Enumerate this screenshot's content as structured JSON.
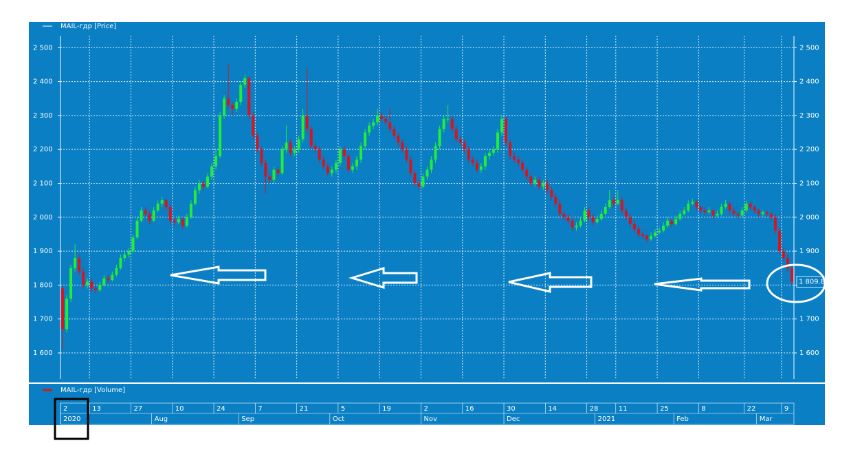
{
  "chart_data": {
    "type": "candlestick",
    "series": [
      {
        "name": "MAIL-гдр [Price]",
        "ohlc": [
          [
            1790,
            1800,
            1610,
            1670
          ],
          [
            1670,
            1770,
            1660,
            1760
          ],
          [
            1760,
            1860,
            1750,
            1850
          ],
          [
            1850,
            1920,
            1840,
            1880
          ],
          [
            1880,
            1890,
            1830,
            1840
          ],
          [
            1840,
            1850,
            1790,
            1800
          ],
          [
            1800,
            1820,
            1790,
            1810
          ],
          [
            1810,
            1820,
            1780,
            1790
          ],
          [
            1790,
            1800,
            1775,
            1785
          ],
          [
            1785,
            1810,
            1780,
            1800
          ],
          [
            1800,
            1830,
            1795,
            1820
          ],
          [
            1820,
            1830,
            1805,
            1815
          ],
          [
            1815,
            1840,
            1810,
            1830
          ],
          [
            1830,
            1860,
            1825,
            1850
          ],
          [
            1850,
            1890,
            1845,
            1880
          ],
          [
            1880,
            1900,
            1870,
            1890
          ],
          [
            1890,
            1910,
            1880,
            1900
          ],
          [
            1900,
            1950,
            1895,
            1940
          ],
          [
            1940,
            2000,
            1935,
            1990
          ],
          [
            1990,
            2030,
            1985,
            2020
          ],
          [
            2020,
            2030,
            2000,
            2010
          ],
          [
            2010,
            2020,
            1980,
            1990
          ],
          [
            1990,
            2030,
            1985,
            2020
          ],
          [
            2020,
            2050,
            2015,
            2040
          ],
          [
            2040,
            2060,
            2030,
            2050
          ],
          [
            2050,
            2055,
            2020,
            2030
          ],
          [
            2030,
            2040,
            1980,
            1990
          ],
          [
            1990,
            2000,
            1975,
            1985
          ],
          [
            1985,
            2005,
            1980,
            1995
          ],
          [
            1995,
            2000,
            1965,
            1975
          ],
          [
            1975,
            2010,
            1970,
            2000
          ],
          [
            2000,
            2050,
            1995,
            2040
          ],
          [
            2040,
            2090,
            2035,
            2080
          ],
          [
            2080,
            2110,
            2070,
            2100
          ],
          [
            2100,
            2110,
            2080,
            2090
          ],
          [
            2090,
            2130,
            2085,
            2120
          ],
          [
            2120,
            2160,
            2110,
            2150
          ],
          [
            2150,
            2200,
            2140,
            2180
          ],
          [
            2180,
            2310,
            2175,
            2300
          ],
          [
            2300,
            2360,
            2290,
            2350
          ],
          [
            2350,
            2450,
            2320,
            2330
          ],
          [
            2330,
            2340,
            2300,
            2320
          ],
          [
            2320,
            2350,
            2310,
            2340
          ],
          [
            2340,
            2400,
            2330,
            2390
          ],
          [
            2390,
            2420,
            2380,
            2410
          ],
          [
            2410,
            2415,
            2290,
            2300
          ],
          [
            2300,
            2310,
            2230,
            2240
          ],
          [
            2240,
            2250,
            2190,
            2200
          ],
          [
            2200,
            2210,
            2150,
            2160
          ],
          [
            2160,
            2170,
            2070,
            2120
          ],
          [
            2120,
            2130,
            2100,
            2110
          ],
          [
            2110,
            2150,
            2100,
            2140
          ],
          [
            2140,
            2150,
            2120,
            2130
          ],
          [
            2130,
            2210,
            2125,
            2200
          ],
          [
            2200,
            2270,
            2190,
            2220
          ],
          [
            2220,
            2230,
            2180,
            2190
          ],
          [
            2190,
            2210,
            2180,
            2200
          ],
          [
            2200,
            2240,
            2190,
            2230
          ],
          [
            2230,
            2320,
            2220,
            2300
          ],
          [
            2300,
            2440,
            2250,
            2260
          ],
          [
            2260,
            2270,
            2200,
            2210
          ],
          [
            2210,
            2220,
            2190,
            2200
          ],
          [
            2200,
            2210,
            2160,
            2170
          ],
          [
            2170,
            2180,
            2140,
            2150
          ],
          [
            2150,
            2160,
            2120,
            2130
          ],
          [
            2130,
            2150,
            2120,
            2140
          ],
          [
            2140,
            2170,
            2130,
            2160
          ],
          [
            2160,
            2210,
            2150,
            2200
          ],
          [
            2200,
            2210,
            2170,
            2180
          ],
          [
            2180,
            2190,
            2130,
            2140
          ],
          [
            2140,
            2160,
            2130,
            2150
          ],
          [
            2150,
            2180,
            2140,
            2170
          ],
          [
            2170,
            2220,
            2160,
            2210
          ],
          [
            2210,
            2260,
            2200,
            2250
          ],
          [
            2250,
            2280,
            2240,
            2270
          ],
          [
            2270,
            2290,
            2260,
            2280
          ],
          [
            2280,
            2320,
            2270,
            2300
          ],
          [
            2300,
            2310,
            2280,
            2290
          ],
          [
            2290,
            2300,
            2270,
            2280
          ],
          [
            2280,
            2320,
            2250,
            2260
          ],
          [
            2260,
            2270,
            2230,
            2240
          ],
          [
            2240,
            2250,
            2210,
            2220
          ],
          [
            2220,
            2230,
            2190,
            2200
          ],
          [
            2200,
            2210,
            2160,
            2170
          ],
          [
            2170,
            2180,
            2120,
            2130
          ],
          [
            2130,
            2140,
            2090,
            2100
          ],
          [
            2100,
            2110,
            2080,
            2090
          ],
          [
            2090,
            2130,
            2085,
            2120
          ],
          [
            2120,
            2150,
            2110,
            2140
          ],
          [
            2140,
            2180,
            2130,
            2170
          ],
          [
            2170,
            2220,
            2160,
            2210
          ],
          [
            2210,
            2270,
            2200,
            2260
          ],
          [
            2260,
            2300,
            2250,
            2290
          ],
          [
            2290,
            2330,
            2280,
            2290
          ],
          [
            2290,
            2300,
            2250,
            2260
          ],
          [
            2260,
            2270,
            2220,
            2230
          ],
          [
            2230,
            2240,
            2210,
            2220
          ],
          [
            2220,
            2230,
            2190,
            2200
          ],
          [
            2200,
            2210,
            2160,
            2170
          ],
          [
            2170,
            2180,
            2150,
            2160
          ],
          [
            2160,
            2170,
            2130,
            2140
          ],
          [
            2140,
            2160,
            2130,
            2150
          ],
          [
            2150,
            2190,
            2140,
            2180
          ],
          [
            2180,
            2200,
            2170,
            2190
          ],
          [
            2190,
            2210,
            2180,
            2200
          ],
          [
            2200,
            2260,
            2190,
            2250
          ],
          [
            2250,
            2300,
            2240,
            2290
          ],
          [
            2290,
            2295,
            2210,
            2220
          ],
          [
            2220,
            2230,
            2170,
            2180
          ],
          [
            2180,
            2190,
            2160,
            2170
          ],
          [
            2170,
            2180,
            2150,
            2160
          ],
          [
            2160,
            2170,
            2130,
            2140
          ],
          [
            2140,
            2150,
            2110,
            2120
          ],
          [
            2120,
            2130,
            2090,
            2100
          ],
          [
            2100,
            2120,
            2090,
            2110
          ],
          [
            2110,
            2120,
            2080,
            2090
          ],
          [
            2090,
            2110,
            2080,
            2100
          ],
          [
            2100,
            2110,
            2070,
            2080
          ],
          [
            2080,
            2090,
            2050,
            2060
          ],
          [
            2060,
            2070,
            2030,
            2040
          ],
          [
            2040,
            2050,
            2000,
            2010
          ],
          [
            2010,
            2020,
            1990,
            2000
          ],
          [
            2000,
            2010,
            1980,
            1990
          ],
          [
            1990,
            2000,
            1960,
            1970
          ],
          [
            1970,
            1985,
            1960,
            1975
          ],
          [
            1975,
            2000,
            1970,
            1990
          ],
          [
            1990,
            2030,
            1985,
            2020
          ],
          [
            2020,
            2030,
            1990,
            2000
          ],
          [
            2000,
            2010,
            1975,
            1985
          ],
          [
            1985,
            2005,
            1980,
            1995
          ],
          [
            1995,
            2020,
            1990,
            2010
          ],
          [
            2010,
            2040,
            2005,
            2030
          ],
          [
            2030,
            2080,
            2025,
            2050
          ],
          [
            2050,
            2060,
            2030,
            2040
          ],
          [
            2040,
            2080,
            2035,
            2050
          ],
          [
            2050,
            2060,
            2010,
            2020
          ],
          [
            2020,
            2030,
            1990,
            2000
          ],
          [
            2000,
            2010,
            1970,
            1980
          ],
          [
            1980,
            1990,
            1955,
            1965
          ],
          [
            1965,
            1975,
            1940,
            1950
          ],
          [
            1950,
            1960,
            1935,
            1945
          ],
          [
            1945,
            1950,
            1925,
            1935
          ],
          [
            1935,
            1955,
            1930,
            1945
          ],
          [
            1945,
            1965,
            1940,
            1955
          ],
          [
            1955,
            1970,
            1950,
            1960
          ],
          [
            1960,
            1985,
            1955,
            1975
          ],
          [
            1975,
            2000,
            1970,
            1990
          ],
          [
            1990,
            1995,
            1970,
            1980
          ],
          [
            1980,
            2005,
            1975,
            1995
          ],
          [
            1995,
            2020,
            1990,
            2010
          ],
          [
            2010,
            2030,
            2005,
            2020
          ],
          [
            2020,
            2050,
            2015,
            2040
          ],
          [
            2040,
            2055,
            2035,
            2045
          ],
          [
            2045,
            2050,
            2020,
            2030
          ],
          [
            2030,
            2035,
            2010,
            2020
          ],
          [
            2020,
            2030,
            2005,
            2015
          ],
          [
            2015,
            2030,
            2010,
            2020
          ],
          [
            2020,
            2025,
            1995,
            2005
          ],
          [
            2005,
            2020,
            2000,
            2010
          ],
          [
            2010,
            2040,
            2005,
            2030
          ],
          [
            2030,
            2050,
            2025,
            2040
          ],
          [
            2040,
            2045,
            2010,
            2020
          ],
          [
            2020,
            2030,
            2000,
            2010
          ],
          [
            2010,
            2015,
            1995,
            2005
          ],
          [
            2005,
            2030,
            2000,
            2020
          ],
          [
            2020,
            2050,
            2015,
            2040
          ],
          [
            2040,
            2045,
            2020,
            2030
          ],
          [
            2030,
            2035,
            2010,
            2020
          ],
          [
            2020,
            2025,
            2000,
            2010
          ],
          [
            2010,
            2020,
            2000,
            2015
          ],
          [
            2015,
            2020,
            2000,
            2010
          ],
          [
            2010,
            2015,
            1990,
            2000
          ],
          [
            2000,
            2010,
            1950,
            1960
          ],
          [
            1960,
            1970,
            1890,
            1900
          ],
          [
            1900,
            1910,
            1870,
            1880
          ],
          [
            1880,
            1890,
            1840,
            1850
          ],
          [
            1850,
            1860,
            1800,
            1809.8
          ]
        ]
      }
    ],
    "last_value_label": "1 809.8",
    "volume_label": "MAIL-гдр [Volume]",
    "up_color": "#22ee33",
    "down_color": "#d81420",
    "background": "#0a7fc4",
    "grid": true,
    "ylim": [
      1523,
      2535
    ],
    "yticks": [
      {
        "value": 1600,
        "label": "1 600"
      },
      {
        "value": 1700,
        "label": "1 700"
      },
      {
        "value": 1800,
        "label": "1 800"
      },
      {
        "value": 1900,
        "label": "1 900"
      },
      {
        "value": 2000,
        "label": "2 000"
      },
      {
        "value": 2100,
        "label": "2 100"
      },
      {
        "value": 2200,
        "label": "2 200"
      },
      {
        "value": 2300,
        "label": "2 300"
      },
      {
        "value": 2400,
        "label": "2 400"
      },
      {
        "value": 2500,
        "label": "2 500"
      }
    ],
    "xticks": [
      {
        "value": 0,
        "label": "2"
      },
      {
        "value": 7,
        "label": "13"
      },
      {
        "value": 17,
        "label": "27"
      },
      {
        "value": 27,
        "label": "10"
      },
      {
        "value": 37,
        "label": "24"
      },
      {
        "value": 47,
        "label": "7"
      },
      {
        "value": 57,
        "label": "21"
      },
      {
        "value": 67,
        "label": "5"
      },
      {
        "value": 77,
        "label": "19"
      },
      {
        "value": 87,
        "label": "2"
      },
      {
        "value": 97,
        "label": "16"
      },
      {
        "value": 107,
        "label": "30"
      },
      {
        "value": 117,
        "label": "14"
      },
      {
        "value": 127,
        "label": "28"
      },
      {
        "value": 134,
        "label": "11"
      },
      {
        "value": 144,
        "label": "25"
      },
      {
        "value": 154,
        "label": "8"
      },
      {
        "value": 165,
        "label": "22"
      },
      {
        "value": 174,
        "label": "9"
      }
    ],
    "month_ticks": [
      {
        "value": 0,
        "label": "2020"
      },
      {
        "value": 22,
        "label": "Aug"
      },
      {
        "value": 43,
        "label": "Sep"
      },
      {
        "value": 65,
        "label": "Oct"
      },
      {
        "value": 87,
        "label": "Nov"
      },
      {
        "value": 107,
        "label": "Dec"
      },
      {
        "value": 129,
        "label": "2021"
      },
      {
        "value": 148,
        "label": "Feb"
      },
      {
        "value": 168,
        "label": "Mar"
      }
    ]
  }
}
